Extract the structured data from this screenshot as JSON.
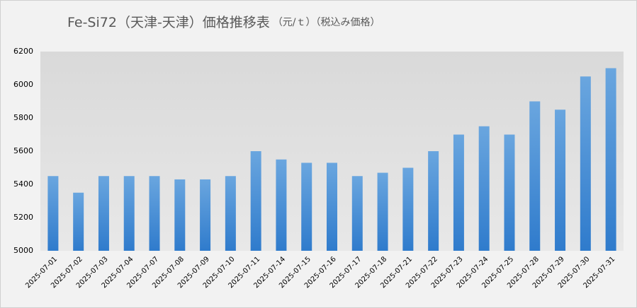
{
  "chart_data": {
    "type": "bar",
    "title": "Fe-Si72（天津-天津）価格推移表",
    "subtitle": "（元/ｔ）（税込み価格）",
    "categories": [
      "2025-07-01",
      "2025-07-02",
      "2025-07-03",
      "2025-07-04",
      "2025-07-07",
      "2025-07-08",
      "2025-07-09",
      "2025-07-10",
      "2025-07-11",
      "2025-07-14",
      "2025-07-15",
      "2025-07-16",
      "2025-07-17",
      "2025-07-18",
      "2025-07-21",
      "2025-07-22",
      "2025-07-23",
      "2025-07-24",
      "2025-07-25",
      "2025-07-28",
      "2025-07-29",
      "2025-07-30",
      "2025-07-31"
    ],
    "values": [
      5450,
      5350,
      5450,
      5450,
      5450,
      5430,
      5430,
      5450,
      5600,
      5550,
      5530,
      5530,
      5450,
      5470,
      5500,
      5600,
      5700,
      5750,
      5700,
      5900,
      5850,
      6050,
      6100
    ],
    "color": "#4a8fd6",
    "ylim": [
      5000,
      6200
    ],
    "yticks": [
      5000,
      5200,
      5400,
      5600,
      5800,
      6000,
      6200
    ],
    "grid": false
  }
}
